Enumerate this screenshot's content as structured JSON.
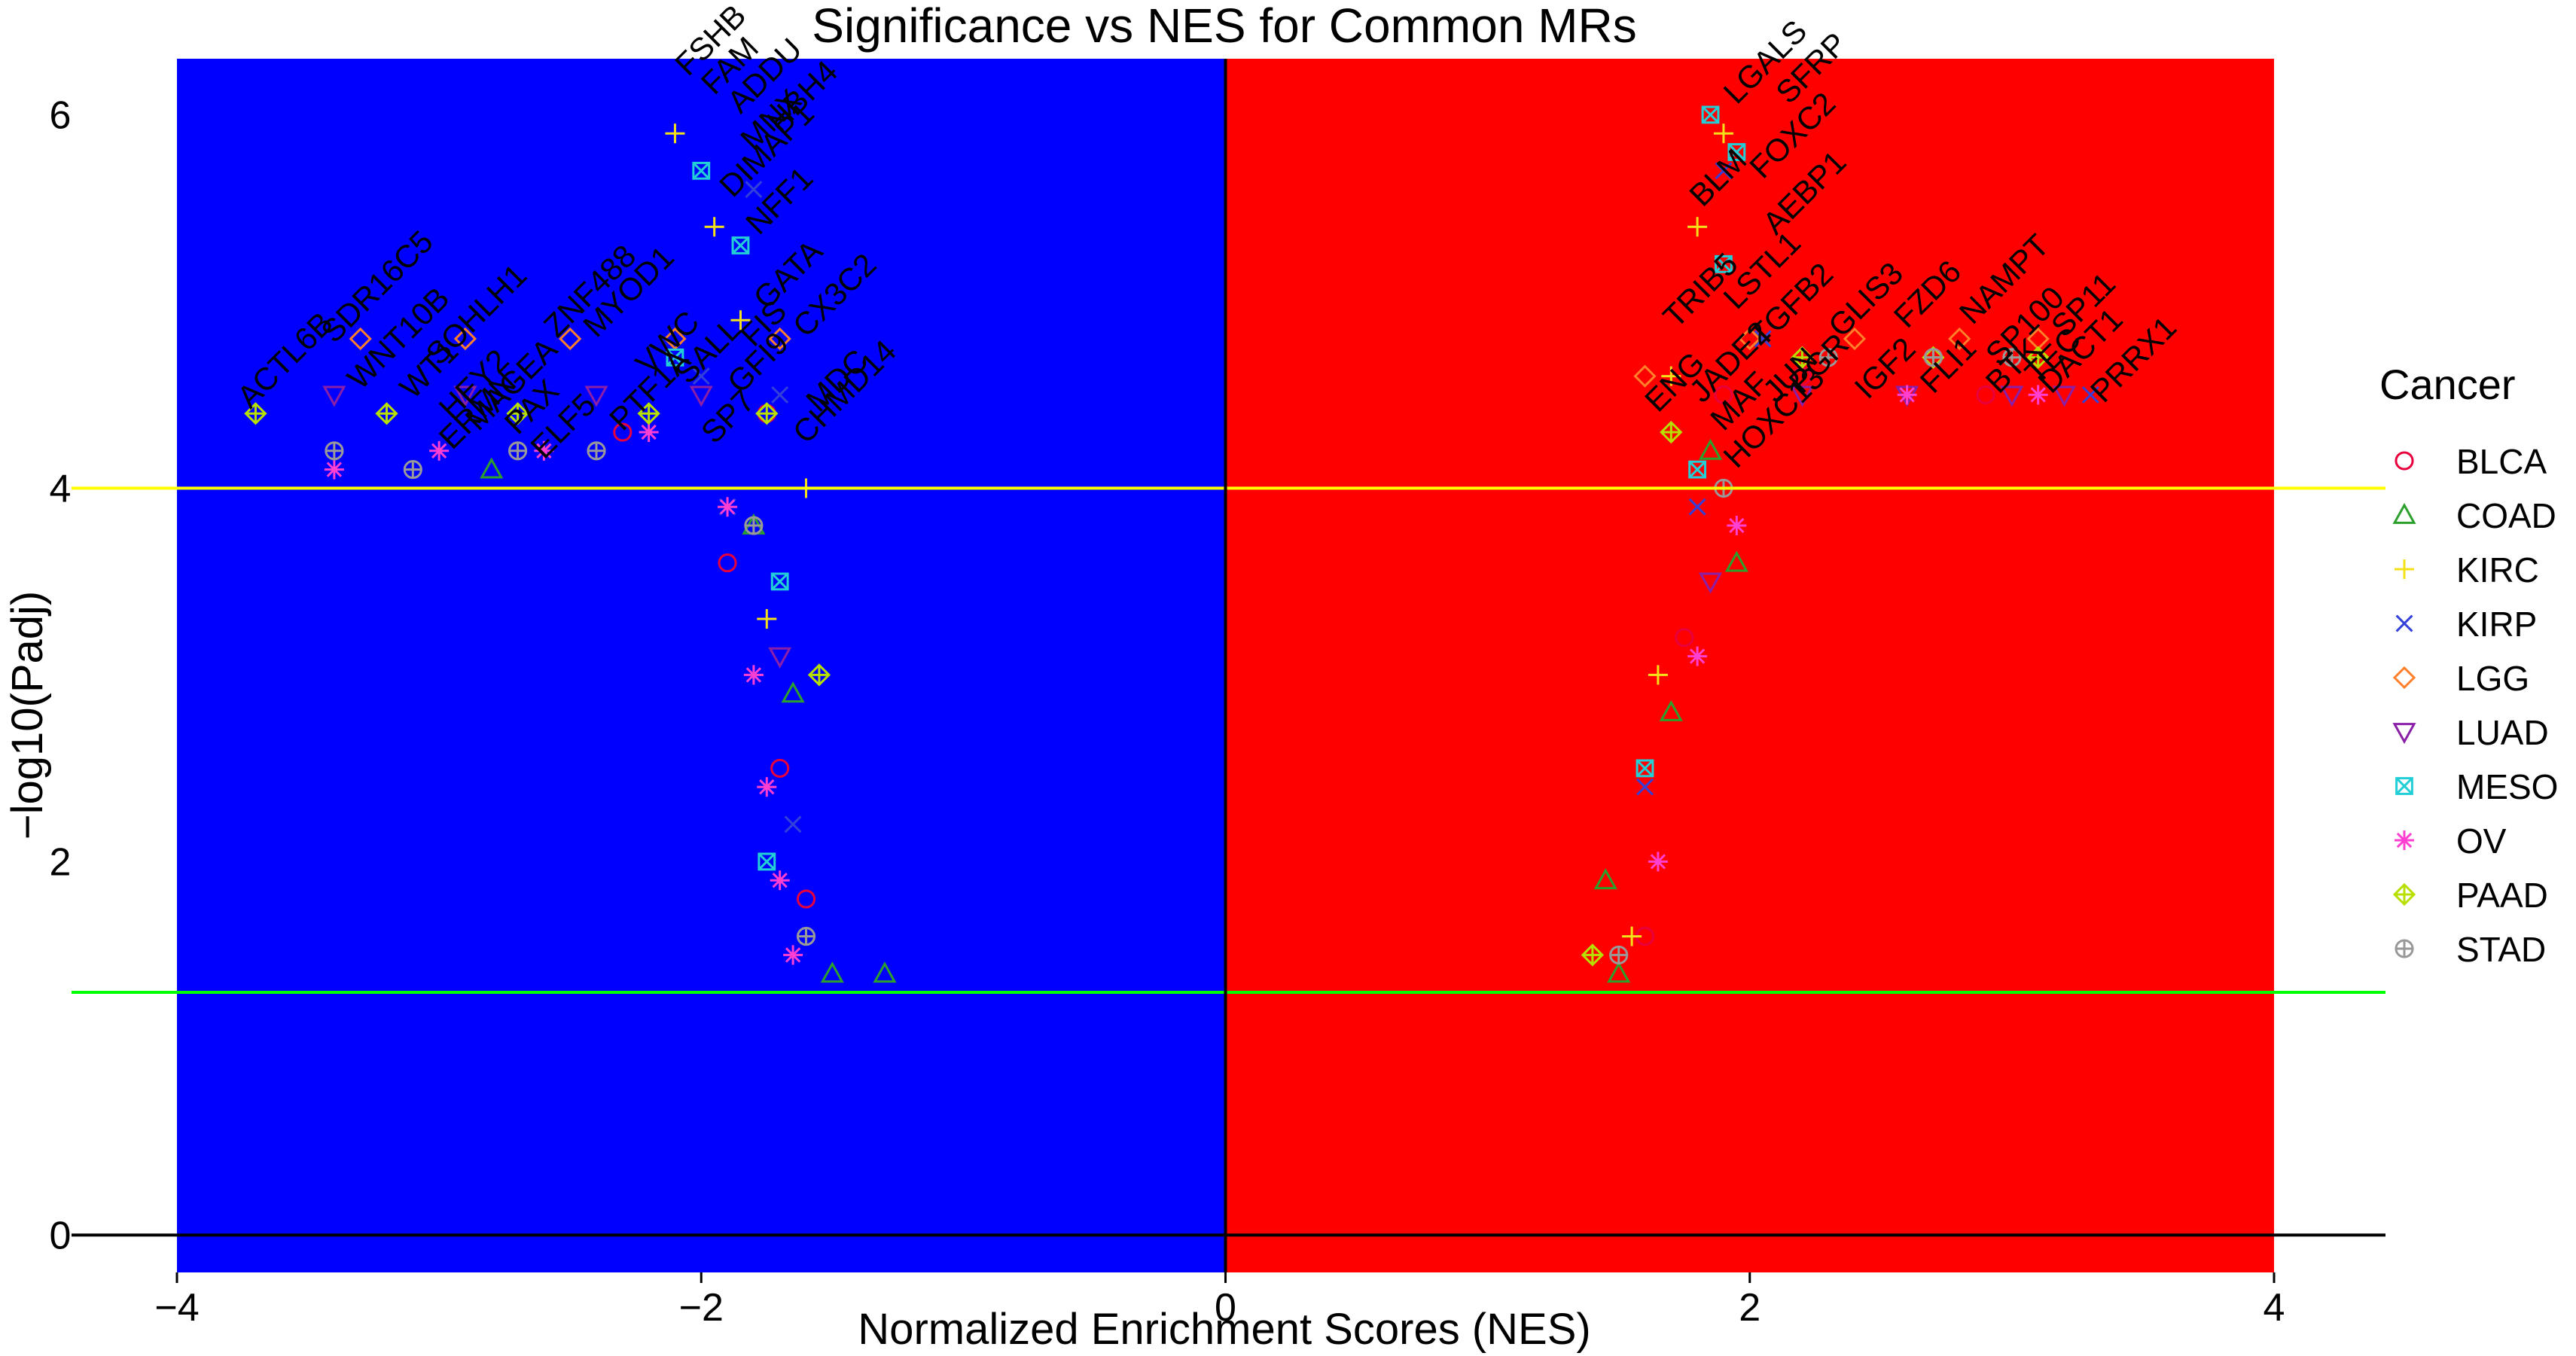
{
  "chart_data": {
    "type": "scatter",
    "title": "Significance vs NES for Common MRs",
    "xlabel": "Normalized Enrichment Scores (NES)",
    "ylabel": "−log10(Padj)",
    "xlim": [
      -4,
      4
    ],
    "ylim": [
      -0.2,
      6.3
    ],
    "x_ticks": [
      -4,
      -2,
      0,
      2,
      4
    ],
    "x_tick_labels": [
      "−4",
      "−2",
      "0",
      "2",
      "4"
    ],
    "y_ticks": [
      0,
      2,
      4,
      6
    ],
    "y_tick_labels": [
      "0",
      "2",
      "4",
      "6"
    ],
    "background_regions": [
      {
        "x": [
          -4,
          0
        ],
        "color": "#0000ff"
      },
      {
        "x": [
          0,
          4
        ],
        "color": "#ff0000"
      }
    ],
    "reference_lines": [
      {
        "axis": "y",
        "value": 4,
        "color": "#ffff00"
      },
      {
        "axis": "y",
        "value": 1.3,
        "color": "#00ff00"
      },
      {
        "axis": "y",
        "value": 0,
        "color": "#000000"
      },
      {
        "axis": "x",
        "value": 0,
        "color": "#000000"
      }
    ],
    "grid": false,
    "legend": {
      "title": "Cancer",
      "placement": "right",
      "entries": [
        {
          "name": "BLCA",
          "color": "#e8003c",
          "marker": "circle"
        },
        {
          "name": "COAD",
          "color": "#2ca02c",
          "marker": "triangle"
        },
        {
          "name": "KIRC",
          "color": "#f5e11a",
          "marker": "plus"
        },
        {
          "name": "KIRP",
          "color": "#3340d9",
          "marker": "cross"
        },
        {
          "name": "LGG",
          "color": "#ff7f2a",
          "marker": "diamond"
        },
        {
          "name": "LUAD",
          "color": "#8a1fa8",
          "marker": "triangle-down"
        },
        {
          "name": "MESO",
          "color": "#22cfd6",
          "marker": "square-x"
        },
        {
          "name": "OV",
          "color": "#ff3fd1",
          "marker": "asterisk"
        },
        {
          "name": "PAAD",
          "color": "#b7e000",
          "marker": "diamond-plus"
        },
        {
          "name": "STAD",
          "color": "#999999",
          "marker": "circle-plus"
        }
      ]
    },
    "series": [
      {
        "name": "BLCA",
        "points": [
          [
            -1.7,
            2.5
          ],
          [
            -1.6,
            1.8
          ],
          [
            -1.9,
            3.6
          ],
          [
            -2.3,
            4.3
          ],
          [
            -1.75,
            4.4
          ],
          [
            1.6,
            1.6
          ],
          [
            1.75,
            3.2
          ],
          [
            1.9,
            4.5
          ],
          [
            2.2,
            4.6
          ],
          [
            2.9,
            4.5
          ]
        ]
      },
      {
        "name": "COAD",
        "points": [
          [
            -2.8,
            4.1
          ],
          [
            -1.5,
            1.4
          ],
          [
            -1.65,
            2.9
          ],
          [
            -1.8,
            3.8
          ],
          [
            -1.3,
            1.4
          ],
          [
            1.5,
            1.4
          ],
          [
            1.7,
            2.8
          ],
          [
            1.85,
            4.2
          ],
          [
            1.95,
            3.6
          ],
          [
            1.45,
            1.9
          ]
        ]
      },
      {
        "name": "KIRC",
        "points": [
          [
            -2.1,
            5.9
          ],
          [
            -1.95,
            5.4
          ],
          [
            -1.85,
            4.9
          ],
          [
            -1.6,
            4.0
          ],
          [
            -1.75,
            3.3
          ],
          [
            1.9,
            5.9
          ],
          [
            1.8,
            5.4
          ],
          [
            1.7,
            4.6
          ],
          [
            1.55,
            1.6
          ],
          [
            1.65,
            3.0
          ]
        ]
      },
      {
        "name": "KIRP",
        "points": [
          [
            -1.8,
            5.6
          ],
          [
            -2.0,
            4.6
          ],
          [
            -1.7,
            4.5
          ],
          [
            -1.9,
            3.9
          ],
          [
            -1.65,
            2.2
          ],
          [
            1.9,
            5.7
          ],
          [
            2.05,
            4.8
          ],
          [
            1.8,
            3.9
          ],
          [
            3.3,
            4.5
          ],
          [
            1.6,
            2.4
          ]
        ]
      },
      {
        "name": "LGG",
        "points": [
          [
            -3.3,
            4.8
          ],
          [
            -2.9,
            4.8
          ],
          [
            -2.5,
            4.8
          ],
          [
            -2.1,
            4.8
          ],
          [
            -1.7,
            4.8
          ],
          [
            1.6,
            4.6
          ],
          [
            2.0,
            4.8
          ],
          [
            2.4,
            4.8
          ],
          [
            2.8,
            4.8
          ],
          [
            3.1,
            4.8
          ]
        ]
      },
      {
        "name": "LUAD",
        "points": [
          [
            -3.4,
            4.5
          ],
          [
            -2.9,
            4.5
          ],
          [
            -2.4,
            4.5
          ],
          [
            -2.0,
            4.5
          ],
          [
            -1.7,
            3.1
          ],
          [
            1.85,
            3.5
          ],
          [
            2.2,
            4.5
          ],
          [
            2.6,
            4.5
          ],
          [
            3.0,
            4.5
          ],
          [
            3.2,
            4.5
          ]
        ]
      },
      {
        "name": "MESO",
        "points": [
          [
            -2.0,
            5.7
          ],
          [
            -1.85,
            5.3
          ],
          [
            -2.1,
            4.7
          ],
          [
            -1.7,
            3.5
          ],
          [
            -1.75,
            2.0
          ],
          [
            1.85,
            6.0
          ],
          [
            1.95,
            5.8
          ],
          [
            1.9,
            5.2
          ],
          [
            1.8,
            4.1
          ],
          [
            1.6,
            2.5
          ]
        ]
      },
      {
        "name": "OV",
        "points": [
          [
            -3.4,
            4.1
          ],
          [
            -3.0,
            4.2
          ],
          [
            -2.6,
            4.2
          ],
          [
            -2.2,
            4.3
          ],
          [
            -1.9,
            3.9
          ],
          [
            -1.8,
            3.0
          ],
          [
            -1.75,
            2.4
          ],
          [
            -1.7,
            1.9
          ],
          [
            -1.65,
            1.5
          ],
          [
            1.95,
            3.8
          ],
          [
            1.8,
            3.1
          ],
          [
            1.65,
            2.0
          ],
          [
            2.6,
            4.5
          ],
          [
            3.1,
            4.5
          ]
        ]
      },
      {
        "name": "PAAD",
        "points": [
          [
            -3.7,
            4.4
          ],
          [
            -3.2,
            4.4
          ],
          [
            -2.7,
            4.4
          ],
          [
            -2.2,
            4.4
          ],
          [
            -1.75,
            4.4
          ],
          [
            -1.55,
            3.0
          ],
          [
            1.7,
            4.3
          ],
          [
            2.2,
            4.7
          ],
          [
            2.7,
            4.7
          ],
          [
            3.1,
            4.7
          ],
          [
            1.4,
            1.5
          ]
        ]
      },
      {
        "name": "STAD",
        "points": [
          [
            -3.4,
            4.2
          ],
          [
            -3.1,
            4.1
          ],
          [
            -2.7,
            4.2
          ],
          [
            -2.4,
            4.2
          ],
          [
            -1.8,
            3.8
          ],
          [
            -1.6,
            1.6
          ],
          [
            1.9,
            4.0
          ],
          [
            2.3,
            4.7
          ],
          [
            2.7,
            4.7
          ],
          [
            3.0,
            4.7
          ],
          [
            1.5,
            1.5
          ]
        ]
      }
    ],
    "annotations": [
      {
        "text": "ACTL6B",
        "x": -3.72,
        "y": 4.42
      },
      {
        "text": "SDR16C5",
        "x": -3.4,
        "y": 4.77
      },
      {
        "text": "WNT10B",
        "x": -3.3,
        "y": 4.52
      },
      {
        "text": "SOHLH1",
        "x": -3.0,
        "y": 4.65
      },
      {
        "text": "WT1",
        "x": -3.1,
        "y": 4.47
      },
      {
        "text": "ZNF488",
        "x": -2.55,
        "y": 4.8
      },
      {
        "text": "HEY2",
        "x": -2.95,
        "y": 4.36
      },
      {
        "text": "MAGEA",
        "x": -2.85,
        "y": 4.3
      },
      {
        "text": "ERMN",
        "x": -2.95,
        "y": 4.2
      },
      {
        "text": "PAX",
        "x": -2.7,
        "y": 4.28
      },
      {
        "text": "MYOD1",
        "x": -2.4,
        "y": 4.8
      },
      {
        "text": "ELF5",
        "x": -2.6,
        "y": 4.15
      },
      {
        "text": "VWC",
        "x": -2.2,
        "y": 4.6
      },
      {
        "text": "PTF1A",
        "x": -2.3,
        "y": 4.3
      },
      {
        "text": "SALL",
        "x": -2.05,
        "y": 4.55
      },
      {
        "text": "SP7",
        "x": -1.95,
        "y": 4.23
      },
      {
        "text": "FSHB",
        "x": -2.05,
        "y": 6.2
      },
      {
        "text": "FAM",
        "x": -1.95,
        "y": 6.1
      },
      {
        "text": "ADDU",
        "x": -1.85,
        "y": 6.0
      },
      {
        "text": "MNX",
        "x": -1.8,
        "y": 5.8
      },
      {
        "text": "DIMAP1",
        "x": -1.88,
        "y": 5.55
      },
      {
        "text": "NFF1",
        "x": -1.78,
        "y": 5.35
      },
      {
        "text": "HBH4",
        "x": -1.7,
        "y": 5.9
      },
      {
        "text": "GATA",
        "x": -1.75,
        "y": 4.95
      },
      {
        "text": "FIS",
        "x": -1.8,
        "y": 4.75
      },
      {
        "text": "GFI9",
        "x": -1.85,
        "y": 4.5
      },
      {
        "text": "CX3C2",
        "x": -1.6,
        "y": 4.8
      },
      {
        "text": "MDC",
        "x": -1.55,
        "y": 4.4
      },
      {
        "text": "CHMD14",
        "x": -1.6,
        "y": 4.23
      },
      {
        "text": "LGALS",
        "x": 1.95,
        "y": 6.05
      },
      {
        "text": "SFRP",
        "x": 2.15,
        "y": 6.05
      },
      {
        "text": "FOXC2",
        "x": 2.05,
        "y": 5.65
      },
      {
        "text": "BLM",
        "x": 1.82,
        "y": 5.5
      },
      {
        "text": "AEBP1",
        "x": 2.1,
        "y": 5.35
      },
      {
        "text": "TRIB5",
        "x": 1.72,
        "y": 4.85
      },
      {
        "text": "LSTL1",
        "x": 1.95,
        "y": 4.95
      },
      {
        "text": "TGFB2",
        "x": 2.05,
        "y": 4.75
      },
      {
        "text": "GLIS3",
        "x": 2.35,
        "y": 4.8
      },
      {
        "text": "FZD6",
        "x": 2.6,
        "y": 4.85
      },
      {
        "text": "NAMPT",
        "x": 2.85,
        "y": 4.87
      },
      {
        "text": "SP100",
        "x": 2.95,
        "y": 4.65
      },
      {
        "text": "SP11",
        "x": 3.2,
        "y": 4.8
      },
      {
        "text": "ENG",
        "x": 1.65,
        "y": 4.4
      },
      {
        "text": "JADE2",
        "x": 1.82,
        "y": 4.45
      },
      {
        "text": "MAF",
        "x": 1.9,
        "y": 4.3
      },
      {
        "text": "JUN",
        "x": 2.1,
        "y": 4.45
      },
      {
        "text": "PGR",
        "x": 2.2,
        "y": 4.5
      },
      {
        "text": "HOXC13",
        "x": 1.95,
        "y": 4.1
      },
      {
        "text": "IGF2",
        "x": 2.45,
        "y": 4.47
      },
      {
        "text": "FLI1",
        "x": 2.7,
        "y": 4.5
      },
      {
        "text": "BTK",
        "x": 2.95,
        "y": 4.5
      },
      {
        "text": "TEC",
        "x": 3.1,
        "y": 4.55
      },
      {
        "text": "DACT1",
        "x": 3.15,
        "y": 4.5
      },
      {
        "text": "PRRX1",
        "x": 3.35,
        "y": 4.45
      }
    ]
  }
}
